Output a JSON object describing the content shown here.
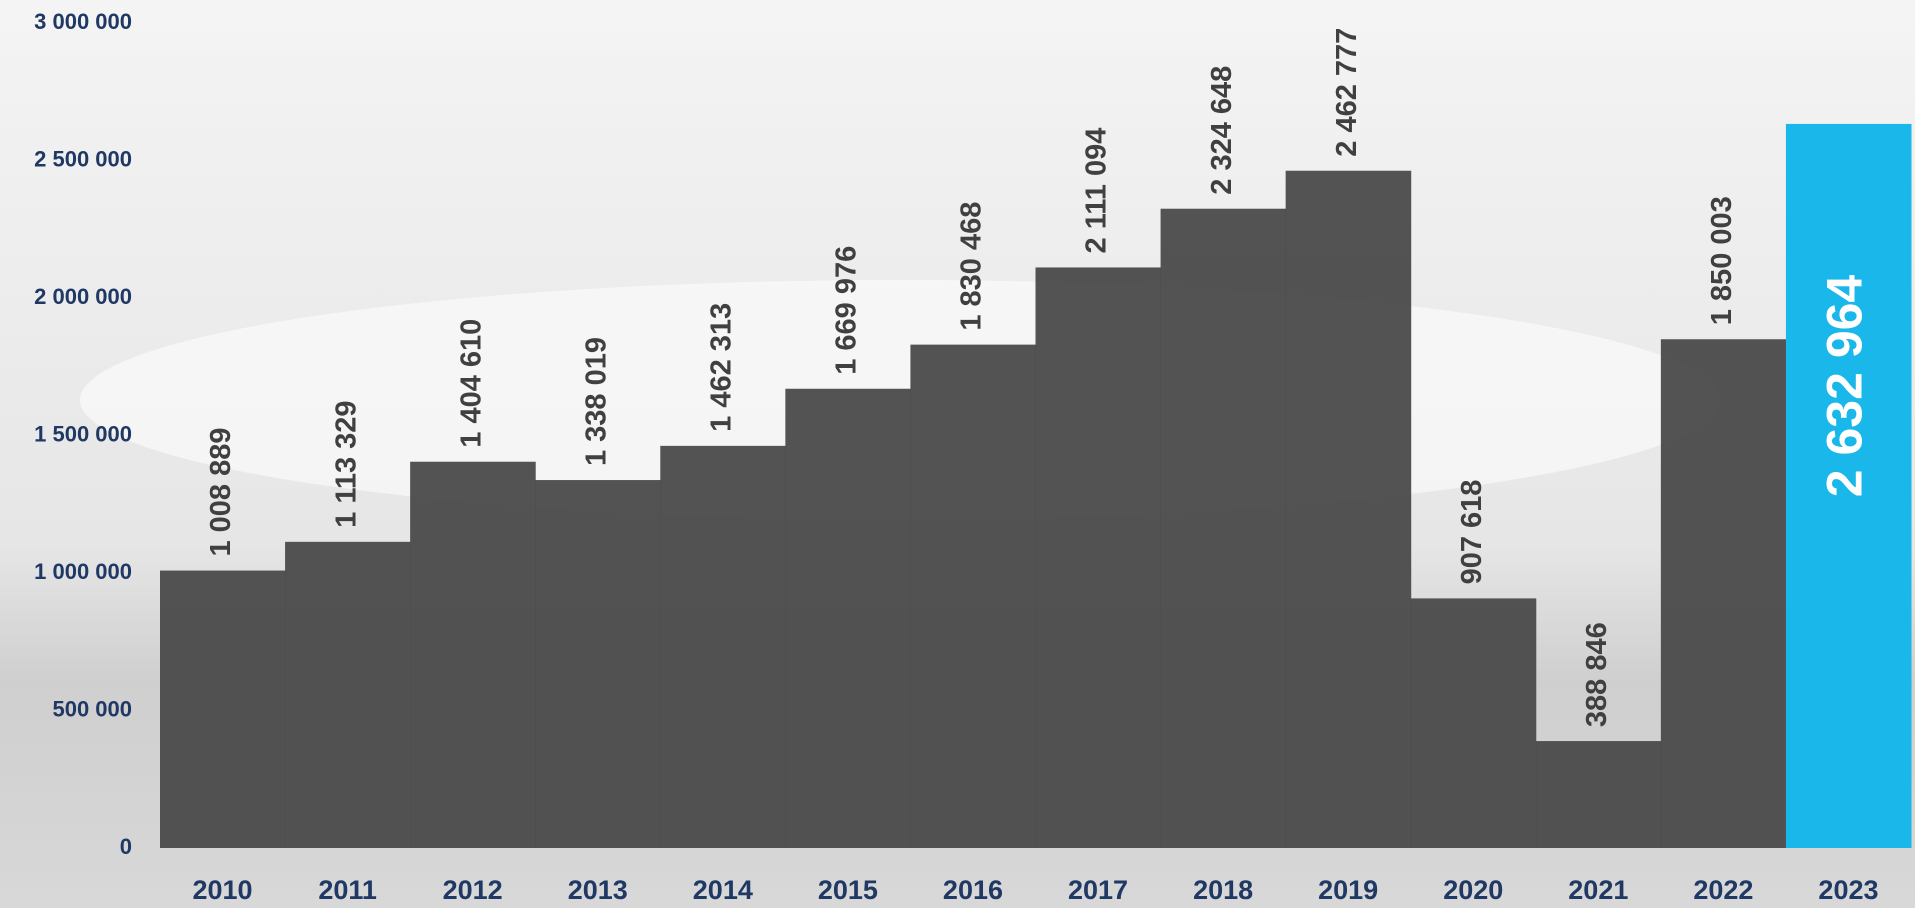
{
  "chart_data": {
    "type": "bar",
    "categories": [
      "2010",
      "2011",
      "2012",
      "2013",
      "2014",
      "2015",
      "2016",
      "2017",
      "2018",
      "2019",
      "2020",
      "2021",
      "2022",
      "2023"
    ],
    "values": [
      1008889,
      1113329,
      1404610,
      1338019,
      1462313,
      1669976,
      1830468,
      2111094,
      2324648,
      2462777,
      907618,
      388846,
      1850003,
      2632964
    ],
    "value_labels": [
      "1 008 889",
      "1 113 329",
      "1 404 610",
      "1 338 019",
      "1 462 313",
      "1 669 976",
      "1 830 468",
      "2 111 094",
      "2 324 648",
      "2 462 777",
      "907 618",
      "388 846",
      "1 850 003",
      "2 632 964"
    ],
    "colors": [
      "#4a4a4a",
      "#4a4a4a",
      "#4a4a4a",
      "#4a4a4a",
      "#4a4a4a",
      "#4a4a4a",
      "#4a4a4a",
      "#4a4a4a",
      "#4a4a4a",
      "#4a4a4a",
      "#4a4a4a",
      "#4a4a4a",
      "#4a4a4a",
      "#1ab7ea"
    ],
    "label_inside": [
      false,
      false,
      false,
      false,
      false,
      false,
      false,
      false,
      false,
      false,
      false,
      false,
      false,
      true
    ],
    "ylim": [
      0,
      3000000
    ],
    "yticks": [
      {
        "value": 0,
        "label": "0"
      },
      {
        "value": 500000,
        "label": "500 000"
      },
      {
        "value": 1000000,
        "label": "1 000 000"
      },
      {
        "value": 1500000,
        "label": "1 500 000"
      },
      {
        "value": 2000000,
        "label": "2 000 000"
      },
      {
        "value": 2500000,
        "label": "2 500 000"
      },
      {
        "value": 3000000,
        "label": "3 000 000"
      }
    ],
    "grid": false
  }
}
